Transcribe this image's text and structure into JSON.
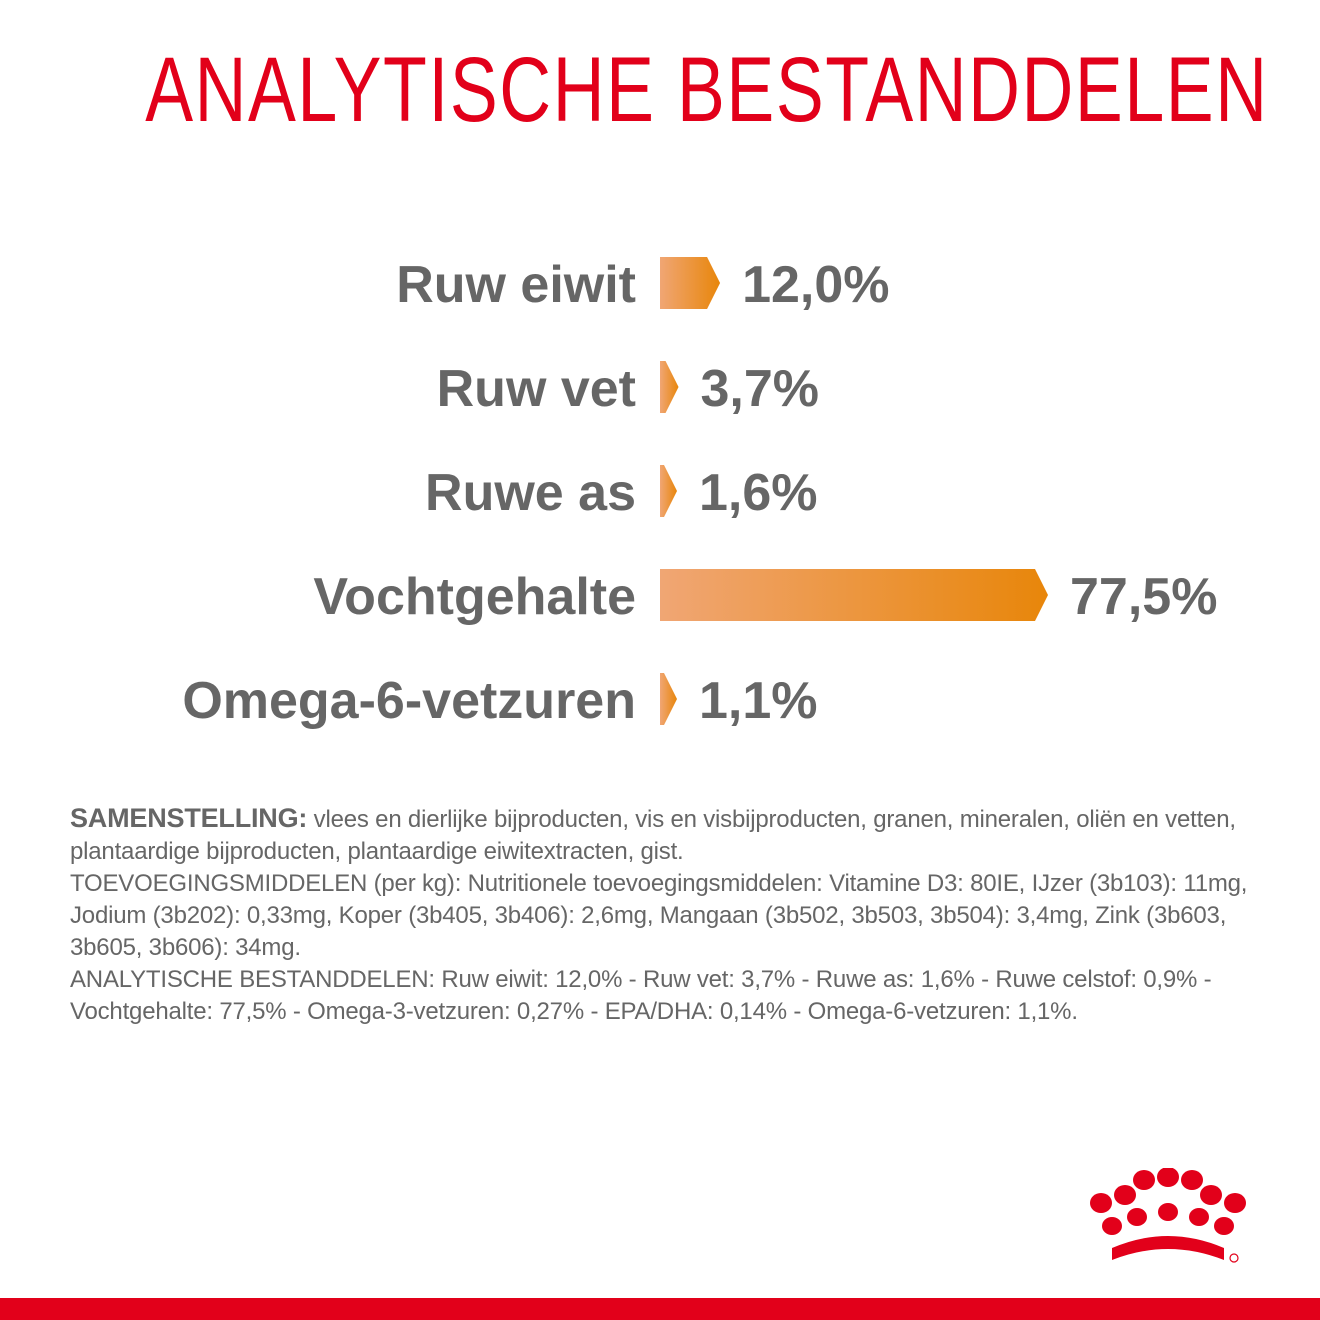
{
  "title": "ANALYTISCHE BESTANDDELEN",
  "chart_data": {
    "type": "bar",
    "orientation": "horizontal",
    "categories": [
      "Ruw eiwit",
      "Ruw vet",
      "Ruwe as",
      "Vochtgehalte",
      "Omega-6-vetzuren"
    ],
    "values": [
      12.0,
      3.7,
      1.6,
      77.5,
      1.1
    ],
    "value_labels": [
      "12,0%",
      "3,7%",
      "1,6%",
      "77,5%",
      "1,1%"
    ],
    "xlim": [
      0,
      77.5
    ],
    "grid": false,
    "legend": "none"
  },
  "composition": {
    "heading": "SAMENSTELLING:",
    "text": "vlees en dierlijke bijproducten, vis en visbijproducten, granen, mineralen, oliën en vetten, plantaardige bijproducten, plantaardige eiwitextracten, gist.",
    "additives": "TOEVOEGINGSMIDDELEN (per kg): Nutritionele toevoegingsmiddelen: Vitamine D3: 80IE, IJzer (3b103): 11mg, Jodium (3b202): 0,33mg, Koper (3b405, 3b406): 2,6mg, Mangaan (3b502, 3b503, 3b504): 3,4mg, Zink (3b603, 3b605, 3b606): 34mg.",
    "analytical": "ANALYTISCHE BESTANDDELEN: Ruw eiwit: 12,0% - Ruw vet: 3,7% - Ruwe as: 1,6% - Ruwe celstof: 0,9% - Vochtgehalte: 77,5% - Omega-3-vetzuren: 0,27% - EPA/DHA: 0,14% - Omega-6-vetzuren: 1,1%."
  },
  "colors": {
    "brand_red": "#e2001a",
    "bar_start": "#f0a674",
    "bar_end": "#e8860a",
    "text_gray": "#666666"
  },
  "logo": {
    "icon": "royal-canin-crown-logo"
  }
}
